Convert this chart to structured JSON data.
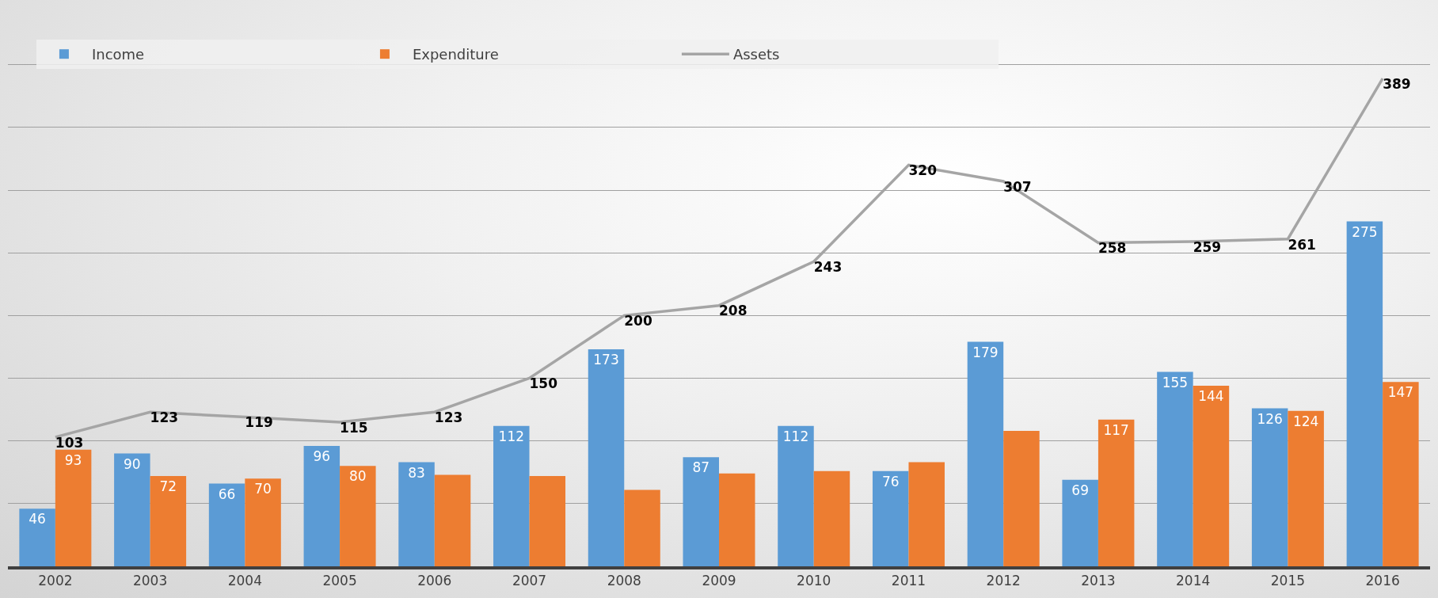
{
  "chart_data": {
    "type": "bar",
    "categories": [
      "2002",
      "2003",
      "2004",
      "2005",
      "2006",
      "2007",
      "2008",
      "2009",
      "2010",
      "2011",
      "2012",
      "2013",
      "2014",
      "2015",
      "2016"
    ],
    "series": [
      {
        "name": "Income",
        "color": "#5b9bd5",
        "values": [
          46,
          90,
          66,
          96,
          83,
          112,
          173,
          87,
          112,
          76,
          179,
          69,
          155,
          126,
          275
        ],
        "value_labels": [
          "46",
          "90",
          "66",
          "96",
          "83",
          "112",
          "173",
          "87",
          "112",
          "76",
          "179",
          "69",
          "155",
          "126",
          "275"
        ]
      },
      {
        "name": "Expenditure",
        "color": "#ed7d31",
        "values": [
          93,
          72,
          70,
          80,
          73,
          72,
          61,
          74,
          76,
          83,
          108,
          117,
          144,
          124,
          147
        ],
        "value_labels": [
          "93",
          "72",
          "70",
          "80",
          null,
          null,
          null,
          null,
          null,
          null,
          null,
          "117",
          "144",
          "124",
          "147"
        ]
      },
      {
        "name": "Assets",
        "type": "line",
        "color": "#a5a5a5",
        "marker": "none",
        "values": [
          103,
          123,
          119,
          115,
          123,
          150,
          200,
          208,
          243,
          320,
          307,
          258,
          259,
          261,
          389
        ],
        "value_labels": [
          "103",
          "123",
          "119",
          "115",
          "123",
          "150",
          "200",
          "208",
          "243",
          "320",
          "307",
          "258",
          "259",
          "261",
          "389"
        ]
      }
    ],
    "ylim": [
      0,
      420
    ],
    "yticks": [
      {
        "value": 0,
        "label": null
      },
      {
        "value": 50,
        "label": null
      },
      {
        "value": 100,
        "label": null
      },
      {
        "value": 150,
        "label": null
      },
      {
        "value": 200,
        "label": null
      },
      {
        "value": 250,
        "label": null
      },
      {
        "value": 300,
        "label": null
      },
      {
        "value": 350,
        "label": null
      },
      {
        "value": 400,
        "label": null
      }
    ],
    "grid": "y",
    "legend": "top left",
    "tick_labels": "x"
  }
}
